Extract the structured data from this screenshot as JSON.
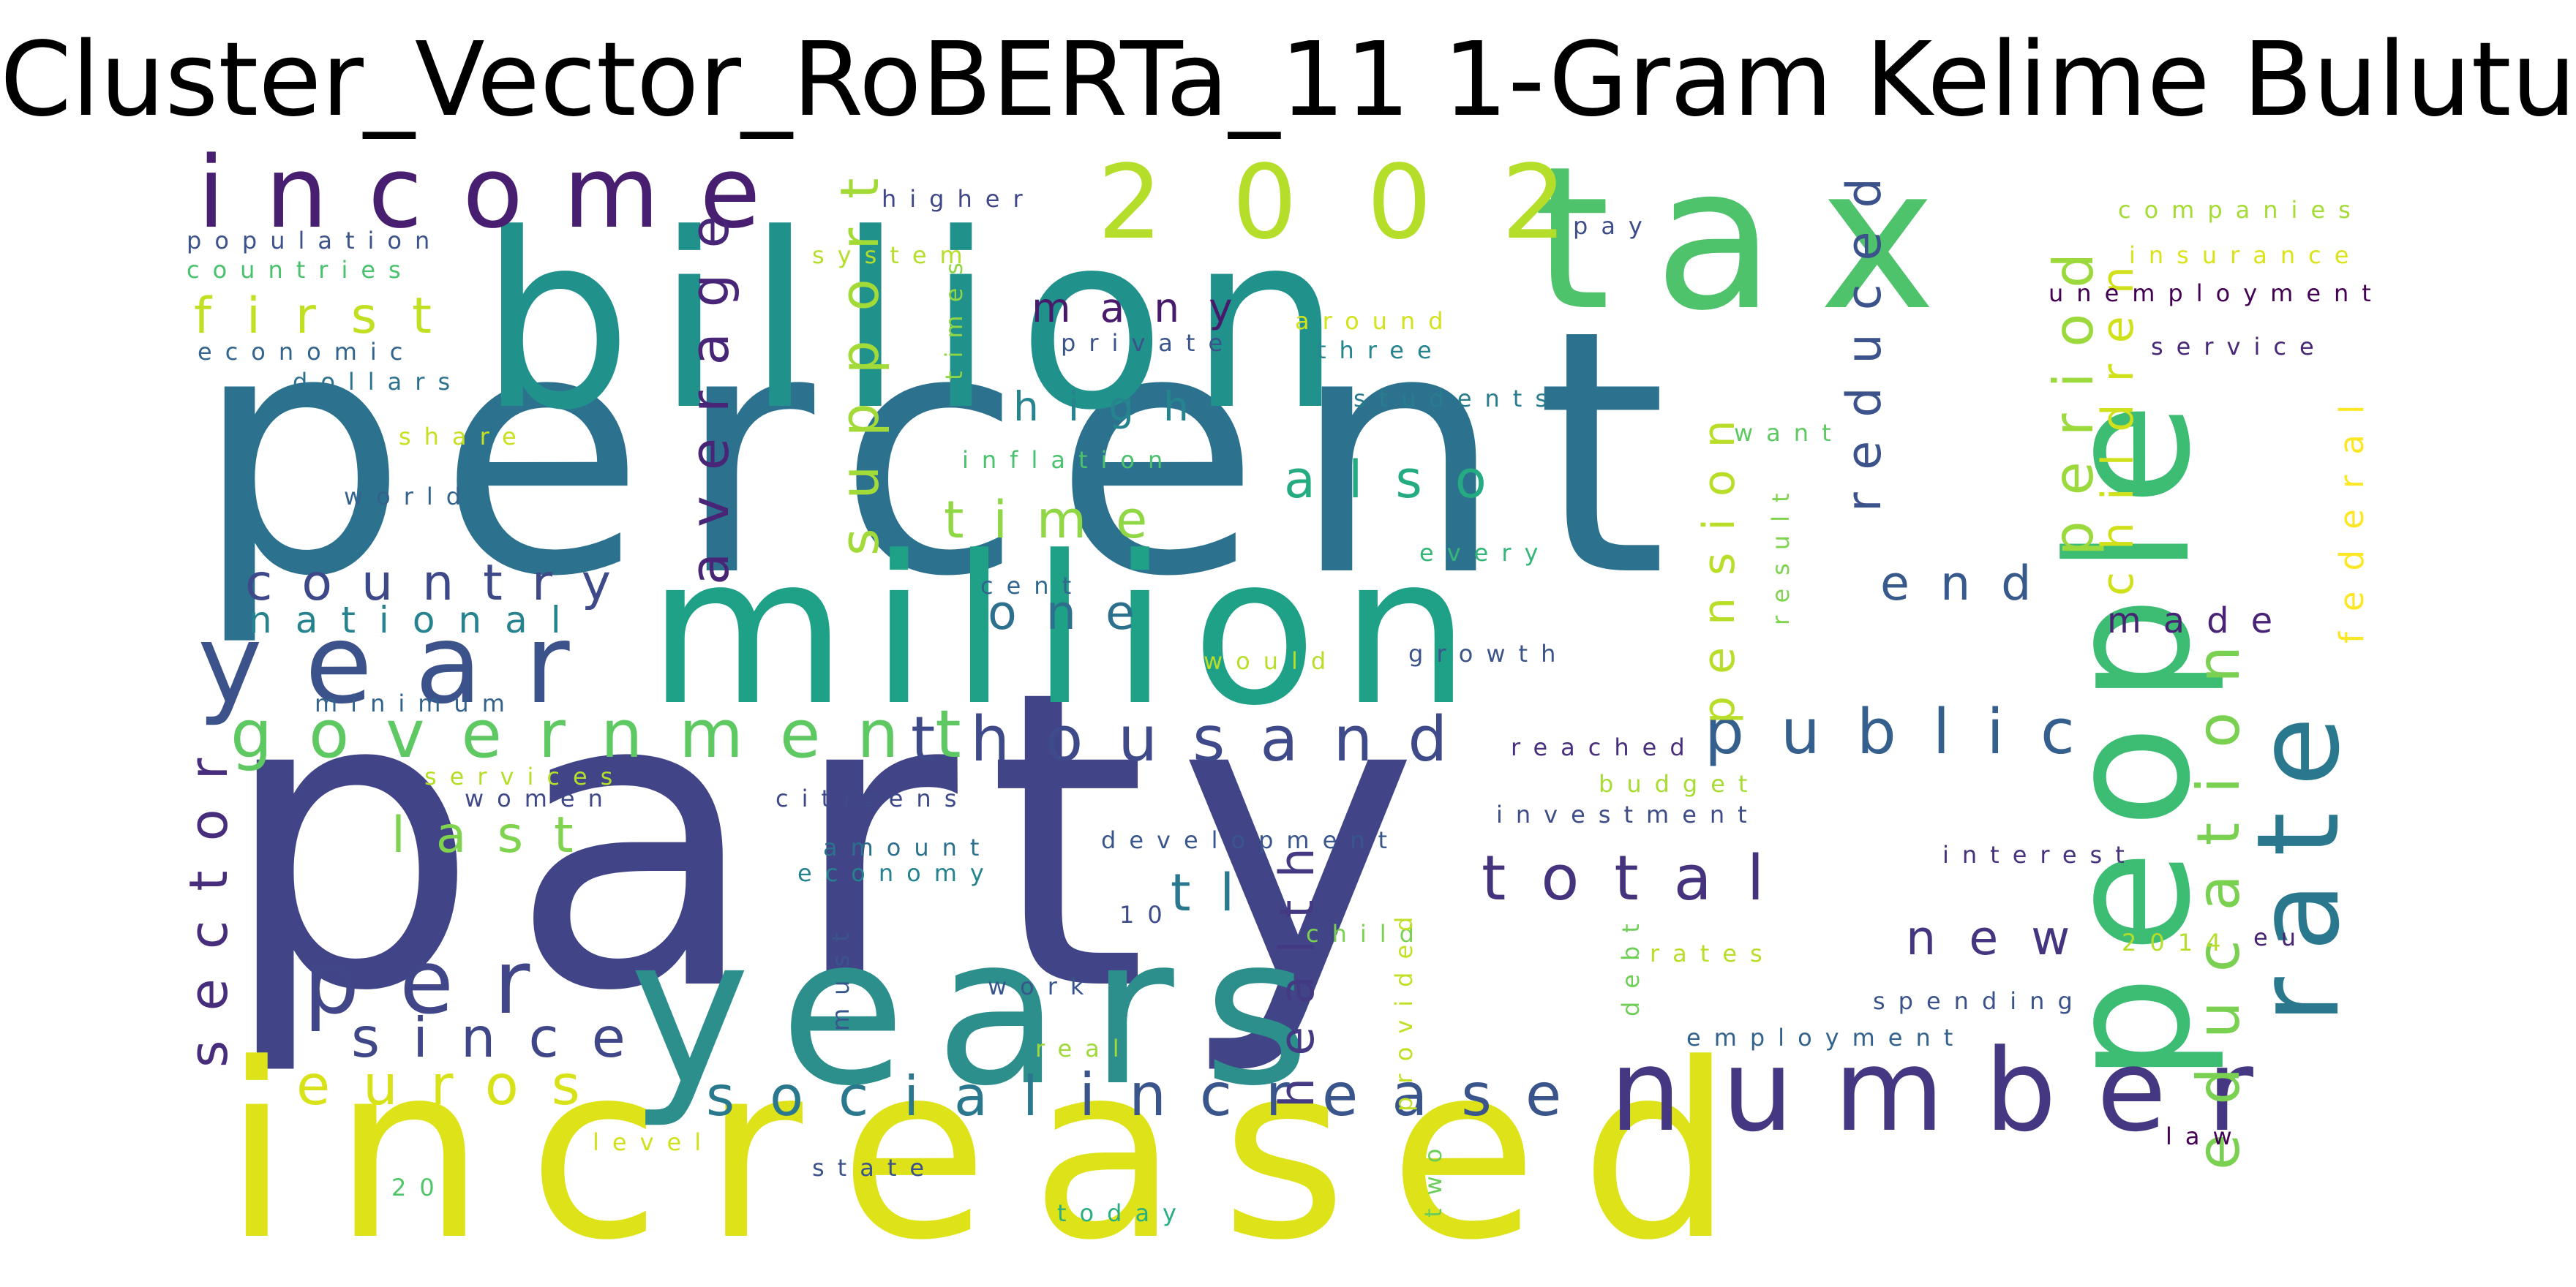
{
  "chart_data": {
    "type": "wordcloud",
    "title": "Cluster_Vector_RoBERTa_11 1-Gram Kelime Bulutu",
    "words": [
      {
        "text": "party",
        "color": "#414487"
      },
      {
        "text": "percent",
        "color": "#2c728e"
      },
      {
        "text": "increased",
        "color": "#dde318"
      },
      {
        "text": "billion",
        "color": "#21918c"
      },
      {
        "text": "million",
        "color": "#1fa187"
      },
      {
        "text": "years",
        "color": "#2c8f8c"
      },
      {
        "text": "tax",
        "color": "#4ec36b"
      },
      {
        "text": "people",
        "color": "#3dbc74"
      },
      {
        "text": "2002",
        "color": "#b5de2b"
      },
      {
        "text": "number",
        "color": "#453781"
      },
      {
        "text": "year",
        "color": "#3b528b"
      },
      {
        "text": "income",
        "color": "#481f70"
      },
      {
        "text": "rate",
        "color": "#2a788e"
      },
      {
        "text": "per",
        "color": "#404688"
      },
      {
        "text": "government",
        "color": "#5ec962"
      },
      {
        "text": "thousand",
        "color": "#3e4a89"
      },
      {
        "text": "public",
        "color": "#355f8d"
      },
      {
        "text": "total",
        "color": "#46337e"
      },
      {
        "text": "increase",
        "color": "#39558c"
      },
      {
        "text": "social",
        "color": "#2a788e"
      },
      {
        "text": "since",
        "color": "#3f4788"
      },
      {
        "text": "euros",
        "color": "#d8e219"
      },
      {
        "text": "education",
        "color": "#7ad151"
      },
      {
        "text": "sector",
        "color": "#472d7b"
      },
      {
        "text": "average",
        "color": "#482576"
      },
      {
        "text": "support",
        "color": "#a2da37"
      },
      {
        "text": "period",
        "color": "#9bd93c"
      },
      {
        "text": "children",
        "color": "#d0e11c"
      },
      {
        "text": "pension",
        "color": "#b8de29"
      },
      {
        "text": "health",
        "color": "#443a83"
      },
      {
        "text": "reduced",
        "color": "#3b528b"
      },
      {
        "text": "also",
        "color": "#25ab82"
      },
      {
        "text": "time",
        "color": "#8fd744"
      },
      {
        "text": "country",
        "color": "#3e4989"
      },
      {
        "text": "first",
        "color": "#c2df23"
      },
      {
        "text": "last",
        "color": "#7fd34e"
      },
      {
        "text": "end",
        "color": "#38598c"
      },
      {
        "text": "one",
        "color": "#2d708e"
      },
      {
        "text": "tl",
        "color": "#2a788e"
      },
      {
        "text": "new",
        "color": "#453581"
      },
      {
        "text": "high",
        "color": "#25848e"
      },
      {
        "text": "many",
        "color": "#481a6c"
      },
      {
        "text": "national",
        "color": "#26828e"
      },
      {
        "text": "made",
        "color": "#482475"
      },
      {
        "text": "federal",
        "color": "#fde725"
      },
      {
        "text": "companies",
        "color": "#a5db36"
      },
      {
        "text": "insurance",
        "color": "#dae319"
      },
      {
        "text": "unemployment",
        "color": "#440154"
      },
      {
        "text": "service",
        "color": "#482878"
      },
      {
        "text": "higher",
        "color": "#3f4788"
      },
      {
        "text": "population",
        "color": "#3b528b"
      },
      {
        "text": "countries",
        "color": "#4ac16d"
      },
      {
        "text": "economic",
        "color": "#32648e"
      },
      {
        "text": "dollars",
        "color": "#2c728e"
      },
      {
        "text": "share",
        "color": "#c8e020"
      },
      {
        "text": "world",
        "color": "#33638d"
      },
      {
        "text": "system",
        "color": "#b5de2b"
      },
      {
        "text": "times",
        "color": "#8ed645"
      },
      {
        "text": "private",
        "color": "#3a538b"
      },
      {
        "text": "around",
        "color": "#d2e21b"
      },
      {
        "text": "three",
        "color": "#25848e"
      },
      {
        "text": "pay",
        "color": "#3e4c8a"
      },
      {
        "text": "students",
        "color": "#287c8e"
      },
      {
        "text": "inflation",
        "color": "#4ac16d"
      },
      {
        "text": "want",
        "color": "#5ec962"
      },
      {
        "text": "every",
        "color": "#35b779"
      },
      {
        "text": "result",
        "color": "#7fd34e"
      },
      {
        "text": "cent",
        "color": "#31678e"
      },
      {
        "text": "would",
        "color": "#b8de29"
      },
      {
        "text": "growth",
        "color": "#3b528b"
      },
      {
        "text": "minimum",
        "color": "#33638d"
      },
      {
        "text": "services",
        "color": "#b5de2b"
      },
      {
        "text": "women",
        "color": "#3f4889"
      },
      {
        "text": "citizens",
        "color": "#3e4989"
      },
      {
        "text": "reached",
        "color": "#472f7d"
      },
      {
        "text": "budget",
        "color": "#a8db34"
      },
      {
        "text": "investment",
        "color": "#3e4c8a"
      },
      {
        "text": "development",
        "color": "#39568c"
      },
      {
        "text": "amount",
        "color": "#2d708e"
      },
      {
        "text": "economy",
        "color": "#26828e"
      },
      {
        "text": "interest",
        "color": "#46327e"
      },
      {
        "text": "10",
        "color": "#3e4c8a"
      },
      {
        "text": "child",
        "color": "#7ad151"
      },
      {
        "text": "must",
        "color": "#39568c"
      },
      {
        "text": "2014",
        "color": "#b5de2b"
      },
      {
        "text": "eu",
        "color": "#482475"
      },
      {
        "text": "rates",
        "color": "#b8de29"
      },
      {
        "text": "debt",
        "color": "#6ece58"
      },
      {
        "text": "work",
        "color": "#39568c"
      },
      {
        "text": "real",
        "color": "#9fda3a"
      },
      {
        "text": "provided",
        "color": "#c0df25"
      },
      {
        "text": "two",
        "color": "#6ccd5a"
      },
      {
        "text": "spending",
        "color": "#3a538b"
      },
      {
        "text": "employment",
        "color": "#33638d"
      },
      {
        "text": "law",
        "color": "#440154"
      },
      {
        "text": "level",
        "color": "#d0e11c"
      },
      {
        "text": "20",
        "color": "#52c569"
      },
      {
        "text": "state",
        "color": "#3b528b"
      },
      {
        "text": "today",
        "color": "#29af7f"
      }
    ]
  }
}
